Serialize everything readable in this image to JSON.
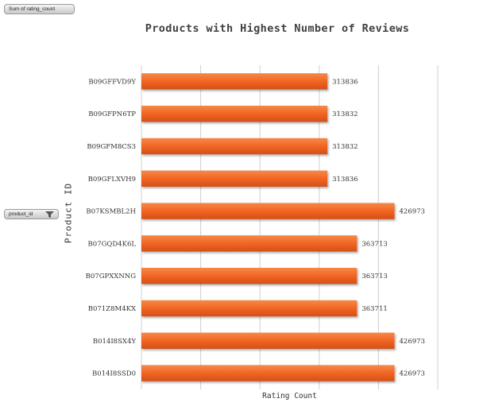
{
  "value_field_button": {
    "label": "Sum of rating_count"
  },
  "axis_field_button": {
    "label": "product_id",
    "icon": "filter-icon"
  },
  "chart_data": {
    "type": "bar",
    "orientation": "horizontal",
    "title": "Products with Highest Number of Reviews",
    "xlabel": "Rating Count",
    "ylabel": "Product ID",
    "categories": [
      "B014I8SSD0",
      "B014I8SX4Y",
      "B071Z8M4KX",
      "B07GPXXNNG",
      "B07GQD4K6L",
      "B07KSMBL2H",
      "B09GFLXVH9",
      "B09GFM8CS3",
      "B09GFPN6TP",
      "B09GFFVD9Y"
    ],
    "values": [
      426973,
      426973,
      363711,
      363713,
      363713,
      426973,
      313836,
      313832,
      313832,
      313836
    ],
    "data_labels": [
      "426973",
      "426973",
      "363711",
      "363713",
      "363713",
      "426973",
      "313836",
      "313832",
      "313832",
      "313836"
    ],
    "xlim": [
      0,
      500000
    ],
    "x_gridlines": [
      0,
      100000,
      200000,
      300000,
      400000,
      500000
    ],
    "show_x_tick_labels": false,
    "grid": true,
    "legend": "none",
    "bar_color": "#f26522"
  }
}
